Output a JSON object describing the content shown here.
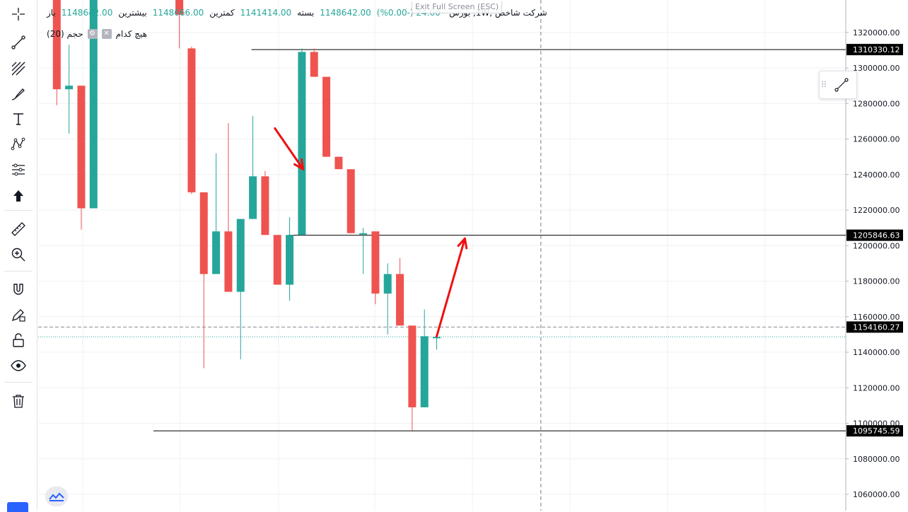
{
  "toolbar": {
    "tools": [
      {
        "name": "crosshair-icon"
      },
      {
        "name": "trend-line-icon"
      },
      {
        "name": "fib-icon"
      },
      {
        "name": "brush-icon"
      },
      {
        "name": "text-icon"
      },
      {
        "name": "pattern-icon"
      },
      {
        "name": "prediction-icon"
      },
      {
        "name": "arrow-up-icon"
      },
      {
        "name": "ruler-icon"
      },
      {
        "name": "zoom-in-icon"
      },
      {
        "name": "magnet-icon"
      },
      {
        "name": "pencil-lock-icon"
      },
      {
        "name": "lock-icon"
      },
      {
        "name": "eye-icon"
      },
      {
        "name": "trash-icon"
      }
    ]
  },
  "legend": {
    "title": "شرکت شاخص ,1W, بورس",
    "change": "(%0.00-) 24.00-",
    "close_label": "بسته",
    "close_value": "1148642.00",
    "low_label": "کمترین",
    "low_value": "1141414.00",
    "high_label": "بیشترین",
    "high_value": "1148666.00",
    "open_label": "باز",
    "open_value": "1148642.00",
    "volume_label": "حجم (20)",
    "volume_value": "هیچ کدام"
  },
  "exit_fullscreen": "Exit Full Screen (ESC)",
  "chart_data": {
    "type": "candlestick",
    "timeframe": "1W",
    "ylim": [
      1050000,
      1340000
    ],
    "y_ticks": [
      1060000,
      1080000,
      1100000,
      1120000,
      1140000,
      1160000,
      1180000,
      1200000,
      1220000,
      1240000,
      1260000,
      1280000,
      1300000,
      1320000
    ],
    "y_tick_labels": [
      "1060000.00",
      "1080000.00",
      "1100000.00",
      "1120000.00",
      "1140000.00",
      "1160000.00",
      "1180000.00",
      "1200000.00",
      "1220000.00",
      "1240000.00",
      "1260000.00",
      "1280000.00",
      "1300000.00",
      "1320000.00"
    ],
    "up_color": "#26a69a",
    "down_color": "#ef5350",
    "candles": [
      {
        "i": 0,
        "o": 1355000,
        "h": 1360000,
        "l": 1279000,
        "c": 1288000
      },
      {
        "i": 1,
        "o": 1288000,
        "h": 1313000,
        "l": 1263000,
        "c": 1290000
      },
      {
        "i": 2,
        "o": 1290000,
        "h": 1290000,
        "l": 1209000,
        "c": 1221000
      },
      {
        "i": 3,
        "o": 1221000,
        "h": 1360000,
        "l": 1221000,
        "c": 1355000
      },
      {
        "i": 10,
        "o": 1355000,
        "h": 1360000,
        "l": 1311000,
        "c": 1330000
      },
      {
        "i": 11,
        "o": 1311000,
        "h": 1312000,
        "l": 1229000,
        "c": 1230000
      },
      {
        "i": 12,
        "o": 1230000,
        "h": 1230000,
        "l": 1131000,
        "c": 1184000
      },
      {
        "i": 13,
        "o": 1184000,
        "h": 1252000,
        "l": 1184000,
        "c": 1208000
      },
      {
        "i": 14,
        "o": 1208000,
        "h": 1269000,
        "l": 1174000,
        "c": 1174000
      },
      {
        "i": 15,
        "o": 1174000,
        "h": 1215000,
        "l": 1136000,
        "c": 1215000
      },
      {
        "i": 16,
        "o": 1215000,
        "h": 1273000,
        "l": 1215000,
        "c": 1239000
      },
      {
        "i": 17,
        "o": 1239000,
        "h": 1242000,
        "l": 1206000,
        "c": 1206000
      },
      {
        "i": 18,
        "o": 1206000,
        "h": 1206000,
        "l": 1178000,
        "c": 1178000
      },
      {
        "i": 19,
        "o": 1178000,
        "h": 1216000,
        "l": 1169000,
        "c": 1206000
      },
      {
        "i": 20,
        "o": 1206000,
        "h": 1311000,
        "l": 1206000,
        "c": 1309000
      },
      {
        "i": 21,
        "o": 1309000,
        "h": 1311000,
        "l": 1295000,
        "c": 1295000
      },
      {
        "i": 22,
        "o": 1295000,
        "h": 1295000,
        "l": 1250000,
        "c": 1250000
      },
      {
        "i": 23,
        "o": 1250000,
        "h": 1250000,
        "l": 1243000,
        "c": 1243000
      },
      {
        "i": 24,
        "o": 1243000,
        "h": 1243000,
        "l": 1207000,
        "c": 1207000
      },
      {
        "i": 25,
        "o": 1207000,
        "h": 1210000,
        "l": 1184000,
        "c": 1207000
      },
      {
        "i": 26,
        "o": 1208000,
        "h": 1208000,
        "l": 1167000,
        "c": 1173000
      },
      {
        "i": 27,
        "o": 1173000,
        "h": 1190000,
        "l": 1150000,
        "c": 1184000
      },
      {
        "i": 28,
        "o": 1184000,
        "h": 1193000,
        "l": 1155000,
        "c": 1155000
      },
      {
        "i": 29,
        "o": 1155000,
        "h": 1155000,
        "l": 1096000,
        "c": 1109000
      },
      {
        "i": 30,
        "o": 1109000,
        "h": 1164000,
        "l": 1109000,
        "c": 1149000
      },
      {
        "i": 31,
        "o": 1148642,
        "h": 1148666,
        "l": 1141414,
        "c": 1148642
      }
    ],
    "horizontal_lines": [
      {
        "value": 1310330.12,
        "label": "1310330.12",
        "from_index": 16
      },
      {
        "value": 1205846.63,
        "label": "1205846.63",
        "from_index": 19
      },
      {
        "value": 1095745.59,
        "label": "1095745.59",
        "from_index": 8
      }
    ],
    "last_price": {
      "value": 1154160.27,
      "label": "1154160.27"
    },
    "current_price": 1148642,
    "arrows": [
      {
        "from": {
          "i": 17.8,
          "v": 1266000
        },
        "to": {
          "i": 20.1,
          "v": 1243000
        },
        "color": "#f01010"
      },
      {
        "from": {
          "i": 31.0,
          "v": 1149000
        },
        "to": {
          "i": 33.3,
          "v": 1204000
        },
        "color": "#f01010"
      }
    ],
    "crosshair_index": 39.5,
    "grid": true
  }
}
